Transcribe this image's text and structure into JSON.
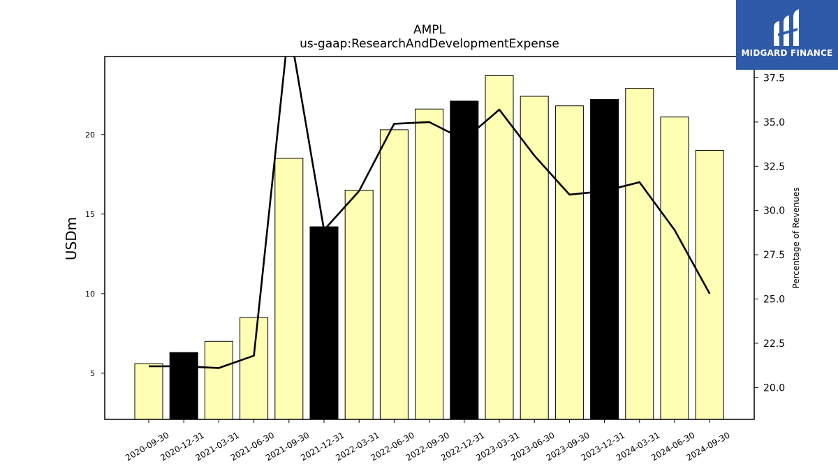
{
  "header": {
    "title": "AMPL",
    "subtitle": "us-gaap:ResearchAndDevelopmentExpense"
  },
  "logo": {
    "text": "MIDGARD FINANCE",
    "color": "#2f5aa8"
  },
  "chart_data": {
    "type": "bar",
    "title": "AMPL",
    "subtitle": "us-gaap:ResearchAndDevelopmentExpense",
    "ylabel": "USDm",
    "y2label": "Percentage of Revenues",
    "ylim": [
      2.1,
      24.9
    ],
    "y2lim": [
      18.2,
      38.7
    ],
    "yticks": [
      "5",
      "10",
      "15",
      "20"
    ],
    "y2ticks": [
      "20.0",
      "22.5",
      "25.0",
      "27.5",
      "30.0",
      "32.5",
      "35.0",
      "37.5"
    ],
    "categories": [
      "2020-09-30",
      "2020-12-31",
      "2021-03-31",
      "2021-06-30",
      "2021-09-30",
      "2021-12-31",
      "2022-03-31",
      "2022-06-30",
      "2022-09-30",
      "2022-12-31",
      "2023-03-31",
      "2023-06-30",
      "2023-09-30",
      "2023-12-31",
      "2024-03-31",
      "2024-06-30",
      "2024-09-30"
    ],
    "series": [
      {
        "type": "bar",
        "axis": "left",
        "values": [
          5.6,
          6.3,
          7.0,
          8.5,
          18.5,
          14.2,
          16.5,
          20.3,
          21.6,
          22.1,
          23.7,
          22.4,
          21.8,
          22.2,
          22.9,
          21.1,
          19.0
        ],
        "colors": [
          "#ffffb3",
          "#000000",
          "#ffffb3",
          "#ffffb3",
          "#ffffb3",
          "#000000",
          "#ffffb3",
          "#ffffb3",
          "#ffffb3",
          "#000000",
          "#ffffb3",
          "#ffffb3",
          "#ffffb3",
          "#000000",
          "#ffffb3",
          "#ffffb3",
          "#ffffb3"
        ]
      },
      {
        "type": "line",
        "axis": "right",
        "values": [
          21.2,
          21.2,
          21.1,
          21.8,
          40.5,
          28.9,
          31.1,
          34.9,
          35.0,
          34.0,
          35.7,
          33.1,
          30.9,
          31.1,
          31.6,
          28.9,
          25.3
        ],
        "color": "#000000"
      }
    ],
    "grid": false,
    "legend": "none"
  }
}
